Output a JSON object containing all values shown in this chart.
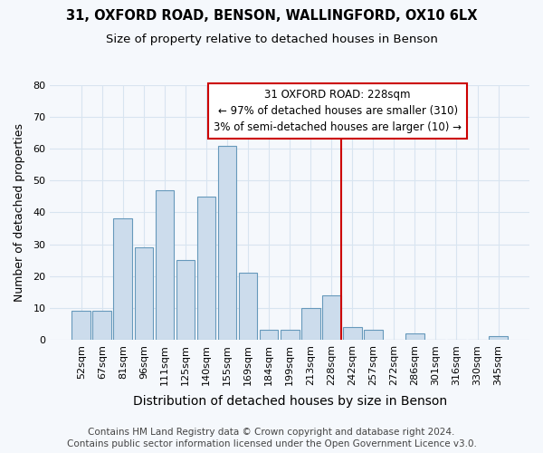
{
  "title_line1": "31, OXFORD ROAD, BENSON, WALLINGFORD, OX10 6LX",
  "title_line2": "Size of property relative to detached houses in Benson",
  "xlabel": "Distribution of detached houses by size in Benson",
  "ylabel": "Number of detached properties",
  "categories": [
    "52sqm",
    "67sqm",
    "81sqm",
    "96sqm",
    "111sqm",
    "125sqm",
    "140sqm",
    "155sqm",
    "169sqm",
    "184sqm",
    "199sqm",
    "213sqm",
    "228sqm",
    "242sqm",
    "257sqm",
    "272sqm",
    "286sqm",
    "301sqm",
    "316sqm",
    "330sqm",
    "345sqm"
  ],
  "values": [
    9,
    9,
    38,
    29,
    47,
    25,
    45,
    61,
    21,
    3,
    3,
    10,
    14,
    4,
    3,
    0,
    2,
    0,
    0,
    0,
    1
  ],
  "bar_color": "#ccdcec",
  "bar_edge_color": "#6699bb",
  "highlight_index": 12,
  "highlight_color": "#cc0000",
  "ylim": [
    0,
    80
  ],
  "yticks": [
    0,
    10,
    20,
    30,
    40,
    50,
    60,
    70,
    80
  ],
  "annotation_title": "31 OXFORD ROAD: 228sqm",
  "annotation_line1": "← 97% of detached houses are smaller (310)",
  "annotation_line2": "3% of semi-detached houses are larger (10) →",
  "annotation_box_color": "#cc0000",
  "footer_line1": "Contains HM Land Registry data © Crown copyright and database right 2024.",
  "footer_line2": "Contains public sector information licensed under the Open Government Licence v3.0.",
  "bg_color": "#f5f8fc",
  "grid_color": "#d8e4f0",
  "title_fontsize": 10.5,
  "subtitle_fontsize": 9.5,
  "ylabel_fontsize": 9,
  "xlabel_fontsize": 10,
  "tick_fontsize": 8,
  "annotation_fontsize": 8.5,
  "footer_fontsize": 7.5
}
